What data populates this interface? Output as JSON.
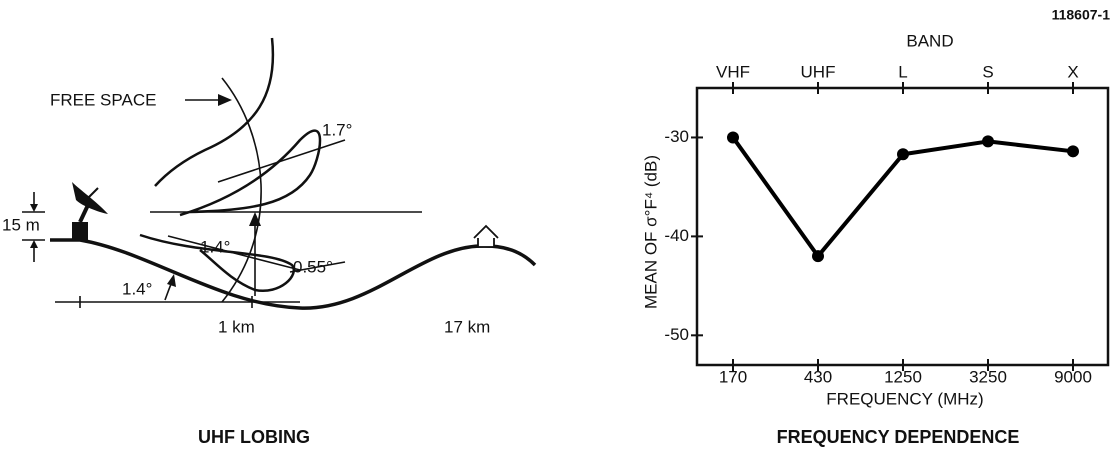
{
  "figure_id": "118607-1",
  "diagram": {
    "title": "UHF LOBING",
    "free_space": "FREE SPACE",
    "antenna_height": "15 m",
    "lobe_angles": [
      "1.7°",
      "1.4°",
      "0.55°"
    ],
    "elevation_angle": "1.4°",
    "distances": [
      "1 km",
      "17 km"
    ]
  },
  "chart_data": {
    "type": "line",
    "title": "FREQUENCY DEPENDENCE",
    "x_label": "FREQUENCY (MHz)",
    "y_label": "MEAN OF σ°F⁴ (dB)",
    "top_axis_label": "BAND",
    "categories": [
      "170",
      "430",
      "1250",
      "3250",
      "9000"
    ],
    "band_categories": [
      "VHF",
      "UHF",
      "L",
      "S",
      "X"
    ],
    "values": [
      -30,
      -42,
      -31.7,
      -30.4,
      -31.4
    ],
    "color": "#000000",
    "ylim": [
      -53,
      -25
    ],
    "yticks": [
      -30,
      -40,
      -50
    ],
    "grid": false
  }
}
